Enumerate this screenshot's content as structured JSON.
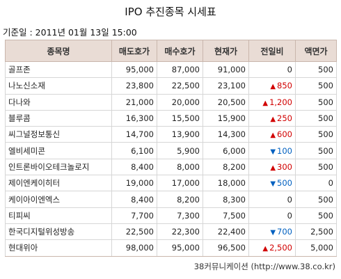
{
  "title": "IPO 추진종목 시세표",
  "date_label": "기준일 : 2011년 01월 13일 15:00",
  "headers": [
    "종목명",
    "매도호가",
    "매수호가",
    "현재가",
    "전일비",
    "액면가"
  ],
  "rows": [
    {
      "name": "골프존",
      "ask": "95,000",
      "bid": "87,000",
      "price": "91,000",
      "dir": "",
      "change": "0",
      "par": "500"
    },
    {
      "name": "나노신소재",
      "ask": "23,800",
      "bid": "22,500",
      "price": "23,100",
      "dir": "up",
      "change": "850",
      "par": "500"
    },
    {
      "name": "다나와",
      "ask": "21,000",
      "bid": "20,000",
      "price": "20,500",
      "dir": "up",
      "change": "1,200",
      "par": "500"
    },
    {
      "name": "블루콤",
      "ask": "16,300",
      "bid": "15,500",
      "price": "15,900",
      "dir": "up",
      "change": "250",
      "par": "500"
    },
    {
      "name": "씨그널정보통신",
      "ask": "14,700",
      "bid": "13,900",
      "price": "14,300",
      "dir": "up",
      "change": "600",
      "par": "500"
    },
    {
      "name": "엘비세미콘",
      "ask": "6,100",
      "bid": "5,900",
      "price": "6,000",
      "dir": "down",
      "change": "100",
      "par": "500"
    },
    {
      "name": "인트론바이오테크놀로지",
      "ask": "8,400",
      "bid": "8,000",
      "price": "8,200",
      "dir": "up",
      "change": "300",
      "par": "500"
    },
    {
      "name": "제이엔케이히터",
      "ask": "19,000",
      "bid": "17,000",
      "price": "18,000",
      "dir": "down",
      "change": "500",
      "par": "0"
    },
    {
      "name": "케이아이엔엑스",
      "ask": "8,400",
      "bid": "8,200",
      "price": "8,300",
      "dir": "",
      "change": "0",
      "par": "500"
    },
    {
      "name": "티피씨",
      "ask": "7,700",
      "bid": "7,300",
      "price": "7,500",
      "dir": "",
      "change": "0",
      "par": "500"
    },
    {
      "name": "한국디지털위성방송",
      "ask": "22,500",
      "bid": "22,300",
      "price": "22,400",
      "dir": "down",
      "change": "700",
      "par": "2,500"
    },
    {
      "name": "현대위아",
      "ask": "98,000",
      "bid": "95,000",
      "price": "96,500",
      "dir": "up",
      "change": "2,500",
      "par": "5,000"
    }
  ],
  "colors": {
    "up": "#d10000",
    "down": "#0060c0",
    "header_bg": "#e9dcd5"
  },
  "footer": "38커뮤니케이션 (http://www.38.co.kr)"
}
